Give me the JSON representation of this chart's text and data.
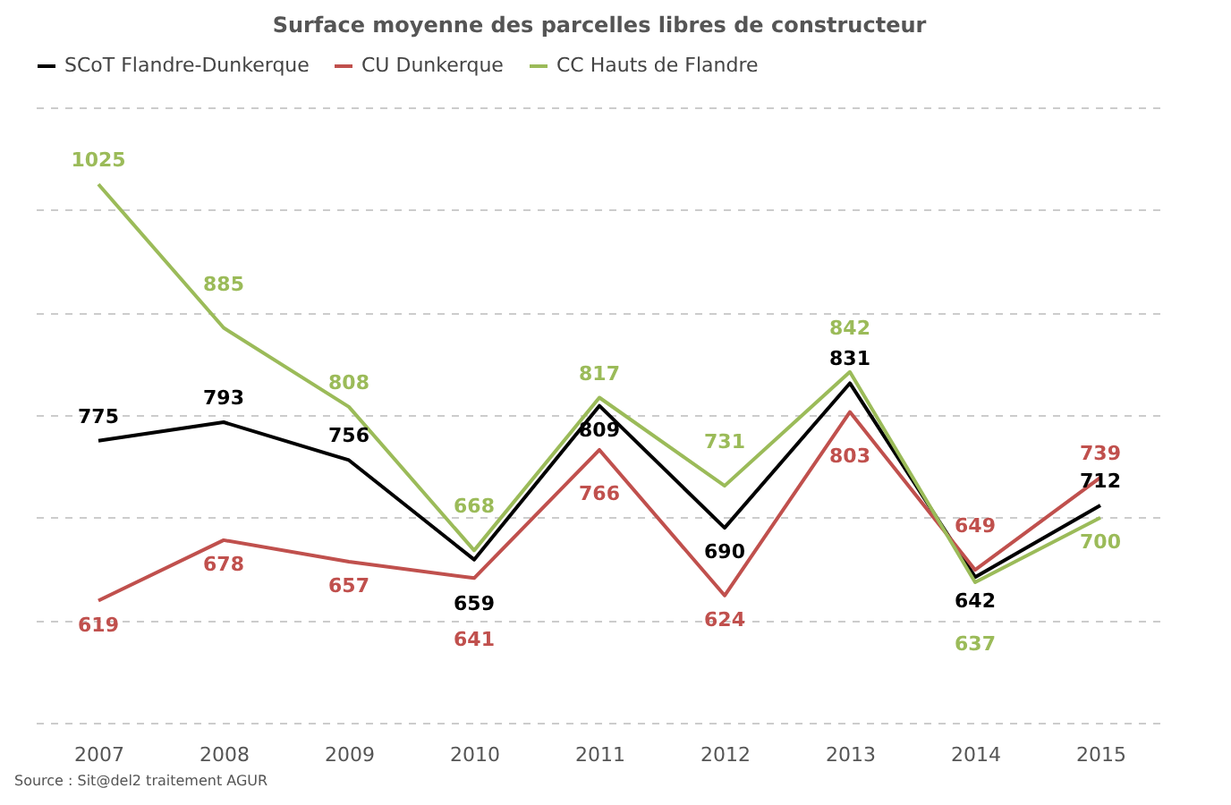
{
  "chart_data": {
    "type": "line",
    "title": "Surface moyenne des parcelles libres de constructeur",
    "categories": [
      "2007",
      "2008",
      "2009",
      "2010",
      "2011",
      "2012",
      "2013",
      "2014",
      "2015"
    ],
    "series": [
      {
        "name": "SCoT Flandre-Dunkerque",
        "color": "#000000",
        "values": [
          775,
          793,
          756,
          659,
          809,
          690,
          831,
          642,
          712
        ]
      },
      {
        "name": "CU Dunkerque",
        "color": "#c0504d",
        "values": [
          619,
          678,
          657,
          641,
          766,
          624,
          803,
          649,
          739
        ]
      },
      {
        "name": "CC Hauts de Flandre",
        "color": "#9bbb59",
        "values": [
          1025,
          885,
          808,
          668,
          817,
          731,
          842,
          637,
          700
        ]
      }
    ],
    "ylim": [
      500,
      1100
    ],
    "yticks": [
      {
        "value": 500,
        "label": null
      },
      {
        "value": 600,
        "label": null
      },
      {
        "value": 700,
        "label": null
      },
      {
        "value": 800,
        "label": null
      },
      {
        "value": 900,
        "label": null
      },
      {
        "value": 1000,
        "label": null
      },
      {
        "value": 1100,
        "label": null
      }
    ],
    "tick_labels": "x",
    "grid": "y",
    "legend": "top",
    "marker": "none",
    "line_style": "solid",
    "data_labels": true,
    "annotations": [
      "Source : Sit@del2 traitement AGUR"
    ]
  }
}
